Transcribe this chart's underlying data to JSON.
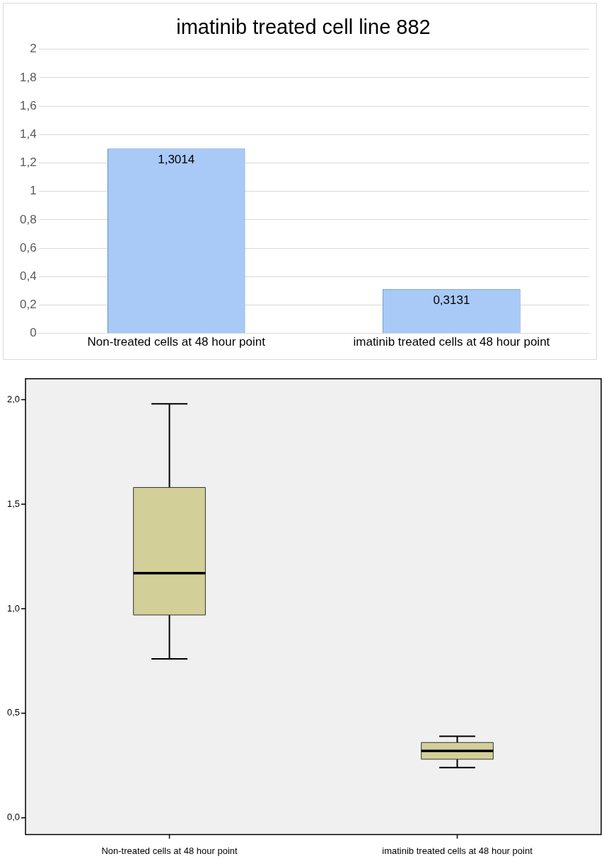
{
  "chart_data": [
    {
      "type": "bar",
      "title": "imatinib treated cell line 882",
      "categories": [
        "Non-treated cells at 48 hour point",
        "imatinib treated cells at 48 hour point"
      ],
      "values": [
        1.3014,
        0.3131
      ],
      "value_labels": [
        "1,3014",
        "0,3131"
      ],
      "color": "#a9c9f7",
      "ylim": [
        0,
        2
      ],
      "yticks": [
        0,
        {
          "value": 0.2,
          "label": "0,2"
        },
        {
          "value": 0.4,
          "label": "0,4"
        },
        {
          "value": 0.6,
          "label": "0,6"
        },
        {
          "value": 0.8,
          "label": "0,8"
        },
        1,
        {
          "value": 1.2,
          "label": "1,2"
        },
        {
          "value": 1.4,
          "label": "1,4"
        },
        {
          "value": 1.6,
          "label": "1,6"
        },
        {
          "value": 1.8,
          "label": "1,8"
        },
        2
      ],
      "grid": "y"
    },
    {
      "type": "box",
      "categories": [
        "Non-treated cells at 48 hour point",
        "imatinib treated cells at 48 hour point"
      ],
      "boxes": [
        {
          "low": 0.76,
          "q1": 0.97,
          "median": 1.17,
          "q3": 1.58,
          "high": 1.98
        },
        {
          "low": 0.24,
          "q1": 0.28,
          "median": 0.32,
          "q3": 0.36,
          "high": 0.39
        }
      ],
      "color": "#d3cf98",
      "ylim": [
        -0.08,
        2.1
      ],
      "yticks": [
        {
          "value": 0,
          "label": "0,0"
        },
        {
          "value": 0.5,
          "label": "0,5"
        },
        {
          "value": 1,
          "label": "1,0"
        },
        {
          "value": 1.5,
          "label": "1,5"
        },
        {
          "value": 2,
          "label": "2,0"
        }
      ]
    }
  ]
}
